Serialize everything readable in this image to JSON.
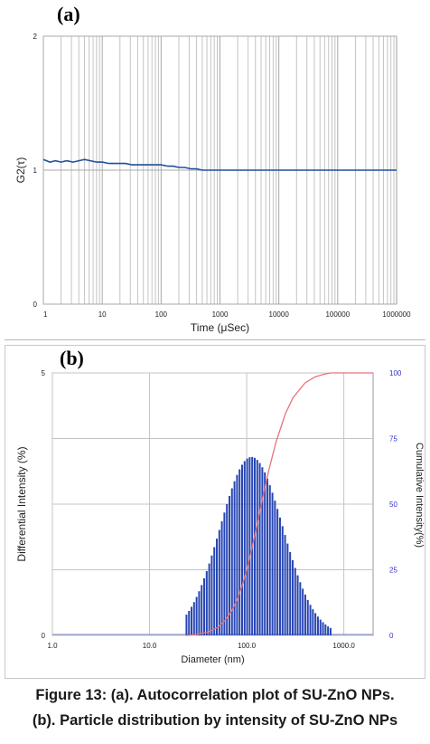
{
  "caption": {
    "line1": "Figure 13: (a). Autocorrelation plot of SU-ZnO NPs.",
    "line2": "(b). Particle distribution by intensity of SU-ZnO NPs"
  },
  "chart_data": [
    {
      "panel_label": "(a)",
      "type": "line",
      "xlabel": "Time (μSec)",
      "ylabel": "G2(τ)",
      "x_scale": "log",
      "xlim": [
        1,
        1000000
      ],
      "ylim": [
        0,
        2
      ],
      "x_ticks": [
        "1",
        "10",
        "100",
        "1000",
        "10000",
        "100000",
        "1000000"
      ],
      "y_ticks": [
        "0",
        "1",
        "2"
      ],
      "grid": true,
      "line_color": "#1f4e9c",
      "series": [
        {
          "x": [
            1,
            1.3,
            1.6,
            2,
            2.5,
            3.2,
            4,
            5,
            6.3,
            8,
            10,
            13,
            16,
            20,
            25,
            32,
            40,
            50,
            63,
            80,
            100,
            130,
            160,
            200,
            250,
            320,
            400,
            500,
            630,
            800,
            1000,
            10000,
            100000,
            1000000
          ],
          "y": [
            1.08,
            1.06,
            1.07,
            1.06,
            1.07,
            1.06,
            1.07,
            1.08,
            1.07,
            1.06,
            1.06,
            1.05,
            1.05,
            1.05,
            1.05,
            1.04,
            1.04,
            1.04,
            1.04,
            1.04,
            1.04,
            1.03,
            1.03,
            1.02,
            1.02,
            1.01,
            1.01,
            1.0,
            1.0,
            1.0,
            1.0,
            1.0,
            1.0,
            1.0
          ]
        }
      ]
    },
    {
      "panel_label": "(b)",
      "type": "bar",
      "xlabel": "Diameter (nm)",
      "ylabel": "Differential Intensity (%)",
      "y2label": "Cumulative Intensity(%)",
      "x_scale": "log",
      "xlim": [
        1,
        2000
      ],
      "ylim": [
        0,
        5
      ],
      "y2lim": [
        0,
        100
      ],
      "x_ticks": [
        "1.0",
        "10.0",
        "100.0",
        "1000.0"
      ],
      "y_ticks": [
        "0",
        "5"
      ],
      "y2_ticks": [
        "0",
        "25",
        "50",
        "75",
        "100"
      ],
      "grid": true,
      "bar_color": "#2846b4",
      "cumulative_color": "#e8737a",
      "y2_tick_color": "#3333cc",
      "distribution": {
        "min_nm": 24,
        "max_nm": 730,
        "peak_nm": 112,
        "peak_value": 3.4,
        "bin_count": 58
      },
      "cumulative": {
        "x": [
          24,
          30,
          40,
          50,
          60,
          70,
          80,
          90,
          100,
          110,
          120,
          135,
          150,
          170,
          200,
          250,
          300,
          400,
          500,
          600,
          730,
          2000
        ],
        "y": [
          0,
          0.3,
          1.3,
          3,
          5.7,
          9.3,
          13.8,
          19.1,
          25,
          31.2,
          37.4,
          46.4,
          54.3,
          63.4,
          73.6,
          84.5,
          90.6,
          96.2,
          98.4,
          99.3,
          100,
          100
        ]
      }
    }
  ]
}
